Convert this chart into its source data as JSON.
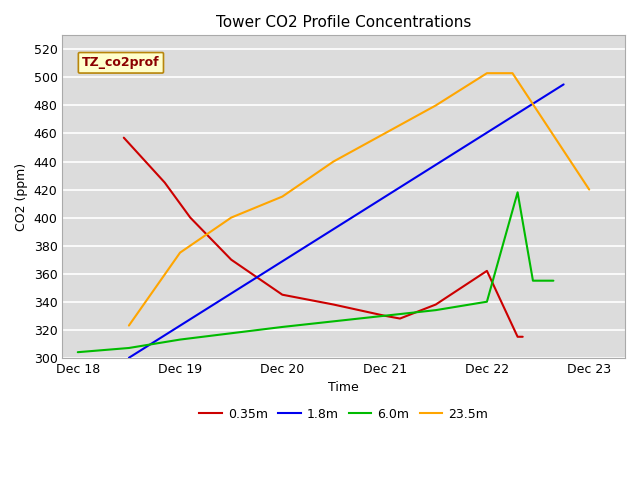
{
  "title": "Tower CO2 Profile Concentrations",
  "xlabel": "Time",
  "ylabel": "CO2 (ppm)",
  "ylim": [
    300,
    530
  ],
  "xlim": [
    17.85,
    23.35
  ],
  "annotation_text": "TZ_co2prof",
  "annotation_color": "#8B0000",
  "annotation_bg": "#FFFFCC",
  "annotation_border": "#B8860B",
  "series": [
    {
      "label": "0.35m",
      "color": "#CC0000",
      "x": [
        18.45,
        18.85,
        19.1,
        19.5,
        20.0,
        20.5,
        21.0,
        21.15,
        21.5,
        22.0,
        22.3,
        22.35
      ],
      "y": [
        457,
        425,
        400,
        370,
        345,
        338,
        330,
        328,
        338,
        362,
        315,
        315
      ]
    },
    {
      "label": "1.8m",
      "color": "#0000EE",
      "x": [
        18.5,
        22.75
      ],
      "y": [
        300,
        495
      ]
    },
    {
      "label": "6.0m",
      "color": "#00BB00",
      "x": [
        18.0,
        18.5,
        19.0,
        20.0,
        21.0,
        21.5,
        22.0,
        22.3,
        22.45,
        22.65
      ],
      "y": [
        304,
        307,
        313,
        322,
        330,
        334,
        340,
        418,
        355,
        355
      ]
    },
    {
      "label": "23.5m",
      "color": "#FFA500",
      "x": [
        18.5,
        19.0,
        19.5,
        20.0,
        20.5,
        21.0,
        21.5,
        22.0,
        22.25,
        23.0
      ],
      "y": [
        323,
        375,
        400,
        415,
        440,
        460,
        480,
        503,
        503,
        420
      ]
    }
  ],
  "bg_color": "#DCDCDC",
  "grid_color": "#FFFFFF",
  "tick_labels": [
    "Dec 18",
    "Dec 19",
    "Dec 20",
    "Dec 21",
    "Dec 22",
    "Dec 23"
  ],
  "tick_positions": [
    18,
    19,
    20,
    21,
    22,
    23
  ],
  "yticks": [
    300,
    320,
    340,
    360,
    380,
    400,
    420,
    440,
    460,
    480,
    500,
    520
  ]
}
